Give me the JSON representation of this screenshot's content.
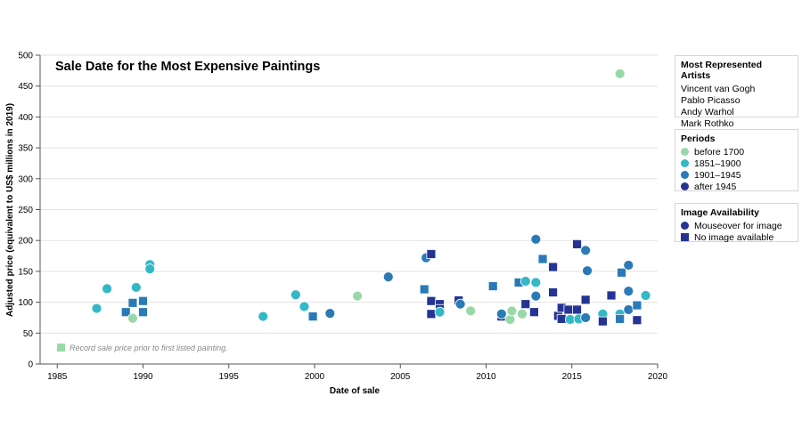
{
  "chart_data": {
    "type": "scatter",
    "title": "Sale Date for the Most Expensive Paintings",
    "xlabel": "Date of sale",
    "ylabel": "Adjusted price (equivalent to US$ millions in 2019)",
    "xlim": [
      1984,
      2020
    ],
    "ylim": [
      0,
      500
    ],
    "xticks": [
      1985,
      1990,
      1995,
      2000,
      2005,
      2010,
      2015,
      2020
    ],
    "yticks": [
      0,
      50,
      100,
      150,
      200,
      250,
      300,
      350,
      400,
      450,
      500
    ],
    "grid": "horizontal",
    "annotation": "Record sale price prior to first listed painting.",
    "annotation_point": {
      "x": 1985.3,
      "y": 25,
      "period": "before 1700",
      "marker": "square"
    },
    "colors": {
      "before 1700": "#99d8a8",
      "1851–1900": "#33b8c5",
      "1901–1945": "#2a7ab8",
      "after 1945": "#253494"
    },
    "points": [
      {
        "x": 1987.3,
        "y": 90,
        "period": "1851–1900",
        "marker": "circle"
      },
      {
        "x": 1987.9,
        "y": 122,
        "period": "1851–1900",
        "marker": "circle"
      },
      {
        "x": 1989.0,
        "y": 84,
        "period": "1901–1945",
        "marker": "square"
      },
      {
        "x": 1989.4,
        "y": 99,
        "period": "1901–1945",
        "marker": "square"
      },
      {
        "x": 1989.4,
        "y": 74,
        "period": "before 1700",
        "marker": "circle"
      },
      {
        "x": 1989.6,
        "y": 124,
        "period": "1851–1900",
        "marker": "circle"
      },
      {
        "x": 1990.0,
        "y": 102,
        "period": "1901–1945",
        "marker": "square"
      },
      {
        "x": 1990.0,
        "y": 84,
        "period": "1901–1945",
        "marker": "square"
      },
      {
        "x": 1990.4,
        "y": 161,
        "period": "1851–1900",
        "marker": "circle"
      },
      {
        "x": 1990.4,
        "y": 154,
        "period": "1851–1900",
        "marker": "circle"
      },
      {
        "x": 1997.0,
        "y": 77,
        "period": "1851–1900",
        "marker": "circle"
      },
      {
        "x": 1998.9,
        "y": 112,
        "period": "1851–1900",
        "marker": "circle"
      },
      {
        "x": 1999.4,
        "y": 93,
        "period": "1851–1900",
        "marker": "circle"
      },
      {
        "x": 1999.9,
        "y": 77,
        "period": "1901–1945",
        "marker": "square"
      },
      {
        "x": 2000.9,
        "y": 82,
        "period": "1901–1945",
        "marker": "circle"
      },
      {
        "x": 2002.5,
        "y": 110,
        "period": "before 1700",
        "marker": "circle"
      },
      {
        "x": 2004.3,
        "y": 141,
        "period": "1901–1945",
        "marker": "circle"
      },
      {
        "x": 2006.4,
        "y": 121,
        "period": "1901–1945",
        "marker": "square"
      },
      {
        "x": 2006.5,
        "y": 172,
        "period": "1901–1945",
        "marker": "circle"
      },
      {
        "x": 2006.8,
        "y": 178,
        "period": "after 1945",
        "marker": "square"
      },
      {
        "x": 2006.8,
        "y": 102,
        "period": "after 1945",
        "marker": "square"
      },
      {
        "x": 2006.8,
        "y": 81,
        "period": "after 1945",
        "marker": "square"
      },
      {
        "x": 2007.3,
        "y": 97,
        "period": "after 1945",
        "marker": "square"
      },
      {
        "x": 2007.3,
        "y": 89,
        "period": "after 1945",
        "marker": "square"
      },
      {
        "x": 2007.3,
        "y": 84,
        "period": "1851–1900",
        "marker": "circle"
      },
      {
        "x": 2008.4,
        "y": 103,
        "period": "after 1945",
        "marker": "square"
      },
      {
        "x": 2008.5,
        "y": 97,
        "period": "1901–1945",
        "marker": "circle"
      },
      {
        "x": 2009.1,
        "y": 86,
        "period": "before 1700",
        "marker": "circle"
      },
      {
        "x": 2010.4,
        "y": 126,
        "period": "1901–1945",
        "marker": "square"
      },
      {
        "x": 2010.9,
        "y": 77,
        "period": "after 1945",
        "marker": "square"
      },
      {
        "x": 2010.9,
        "y": 81,
        "period": "1901–1945",
        "marker": "circle"
      },
      {
        "x": 2011.4,
        "y": 72,
        "period": "before 1700",
        "marker": "circle"
      },
      {
        "x": 2011.5,
        "y": 86,
        "period": "before 1700",
        "marker": "circle"
      },
      {
        "x": 2011.9,
        "y": 132,
        "period": "1901–1945",
        "marker": "square"
      },
      {
        "x": 2012.1,
        "y": 81,
        "period": "before 1700",
        "marker": "circle"
      },
      {
        "x": 2012.3,
        "y": 134,
        "period": "1851–1900",
        "marker": "circle"
      },
      {
        "x": 2012.3,
        "y": 97,
        "period": "after 1945",
        "marker": "square"
      },
      {
        "x": 2012.8,
        "y": 84,
        "period": "after 1945",
        "marker": "square"
      },
      {
        "x": 2012.9,
        "y": 202,
        "period": "1901–1945",
        "marker": "circle"
      },
      {
        "x": 2012.9,
        "y": 132,
        "period": "1851–1900",
        "marker": "circle"
      },
      {
        "x": 2012.9,
        "y": 110,
        "period": "1901–1945",
        "marker": "circle"
      },
      {
        "x": 2013.3,
        "y": 170,
        "period": "1901–1945",
        "marker": "square"
      },
      {
        "x": 2013.9,
        "y": 157,
        "period": "after 1945",
        "marker": "square"
      },
      {
        "x": 2013.9,
        "y": 116,
        "period": "after 1945",
        "marker": "square"
      },
      {
        "x": 2014.2,
        "y": 78,
        "period": "after 1945",
        "marker": "square"
      },
      {
        "x": 2014.4,
        "y": 91,
        "period": "after 1945",
        "marker": "square"
      },
      {
        "x": 2014.4,
        "y": 73,
        "period": "after 1945",
        "marker": "square"
      },
      {
        "x": 2014.8,
        "y": 88,
        "period": "after 1945",
        "marker": "square"
      },
      {
        "x": 2014.9,
        "y": 72,
        "period": "1851–1900",
        "marker": "circle"
      },
      {
        "x": 2015.3,
        "y": 194,
        "period": "after 1945",
        "marker": "square"
      },
      {
        "x": 2015.3,
        "y": 88,
        "period": "after 1945",
        "marker": "square"
      },
      {
        "x": 2015.4,
        "y": 73,
        "period": "1851–1900",
        "marker": "circle"
      },
      {
        "x": 2015.8,
        "y": 184,
        "period": "1901–1945",
        "marker": "circle"
      },
      {
        "x": 2015.8,
        "y": 104,
        "period": "after 1945",
        "marker": "square"
      },
      {
        "x": 2015.8,
        "y": 75,
        "period": "1901–1945",
        "marker": "circle"
      },
      {
        "x": 2015.9,
        "y": 151,
        "period": "1901–1945",
        "marker": "circle"
      },
      {
        "x": 2016.8,
        "y": 81,
        "period": "1851–1900",
        "marker": "circle"
      },
      {
        "x": 2016.8,
        "y": 69,
        "period": "after 1945",
        "marker": "square"
      },
      {
        "x": 2017.3,
        "y": 111,
        "period": "after 1945",
        "marker": "square"
      },
      {
        "x": 2017.8,
        "y": 470,
        "period": "before 1700",
        "marker": "circle"
      },
      {
        "x": 2017.8,
        "y": 81,
        "period": "1851–1900",
        "marker": "circle"
      },
      {
        "x": 2017.8,
        "y": 73,
        "period": "1901–1945",
        "marker": "square"
      },
      {
        "x": 2017.9,
        "y": 148,
        "period": "1901–1945",
        "marker": "square"
      },
      {
        "x": 2018.3,
        "y": 160,
        "period": "1901–1945",
        "marker": "circle"
      },
      {
        "x": 2018.3,
        "y": 118,
        "period": "1901–1945",
        "marker": "circle"
      },
      {
        "x": 2018.3,
        "y": 88,
        "period": "1901–1945",
        "marker": "circle"
      },
      {
        "x": 2018.8,
        "y": 95,
        "period": "1901–1945",
        "marker": "square"
      },
      {
        "x": 2018.8,
        "y": 71,
        "period": "after 1945",
        "marker": "square"
      },
      {
        "x": 2019.3,
        "y": 111,
        "period": "1851–1900",
        "marker": "circle"
      }
    ]
  },
  "legend_artists": {
    "title": "Most Represented Artists",
    "items": [
      "Vincent van Gogh",
      "Pablo Picasso",
      "Andy Warhol",
      "Mark Rothko"
    ]
  },
  "legend_periods": {
    "title": "Periods",
    "items": [
      {
        "label": "before 1700",
        "color": "#99d8a8"
      },
      {
        "label": "1851–1900",
        "color": "#33b8c5"
      },
      {
        "label": "1901–1945",
        "color": "#2a7ab8"
      },
      {
        "label": "after 1945",
        "color": "#253494"
      }
    ]
  },
  "legend_images": {
    "title": "Image Availability",
    "items": [
      {
        "label": "Mouseover for image",
        "marker": "circle",
        "color": "#253494"
      },
      {
        "label": "No image available",
        "marker": "square",
        "color": "#253494"
      }
    ]
  }
}
